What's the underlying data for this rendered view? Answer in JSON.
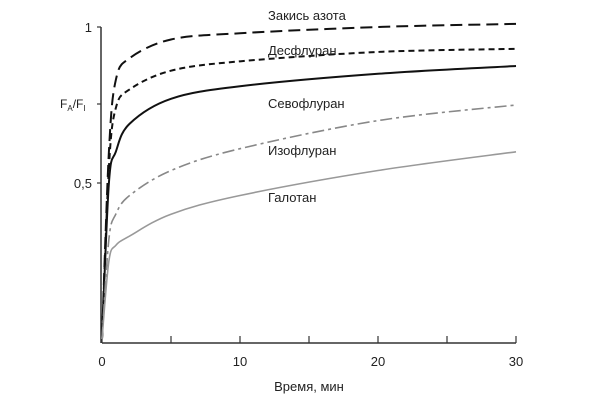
{
  "chart_data": {
    "type": "line",
    "title": "",
    "xlabel": "Время, мин",
    "ylabel_main": "F",
    "ylabel_sub_a": "A",
    "ylabel_sub_i": "I",
    "ylabel": "FA/FI",
    "xlim": [
      0,
      30
    ],
    "ylim": [
      0,
      1
    ],
    "xticks": [
      0,
      5,
      10,
      15,
      20,
      25,
      30
    ],
    "xtick_labels": [
      "0",
      "10",
      "20",
      "30"
    ],
    "xtick_label_values": [
      0,
      10,
      20,
      30
    ],
    "ytick_labels": [
      "1",
      "0,5"
    ],
    "ytick_label_values": [
      1,
      0.5
    ],
    "grid": false,
    "legend": "inline labels",
    "x": [
      0,
      0.5,
      1,
      2,
      5,
      10,
      20,
      30
    ],
    "series": [
      {
        "name": "Закись азота",
        "style": "long-dash",
        "color": "#111111",
        "values": [
          0,
          0.6,
          0.83,
          0.9,
          0.96,
          0.98,
          1.0,
          1.01
        ]
      },
      {
        "name": "Десфлуран",
        "style": "short-dash",
        "color": "#111111",
        "values": [
          0,
          0.55,
          0.74,
          0.8,
          0.86,
          0.89,
          0.92,
          0.93
        ]
      },
      {
        "name": "Севофлуран",
        "style": "solid",
        "color": "#111111",
        "values": [
          0,
          0.5,
          0.6,
          0.69,
          0.77,
          0.81,
          0.85,
          0.875
        ]
      },
      {
        "name": "Изофлуран",
        "style": "dash-dot",
        "color": "#888888",
        "values": [
          0,
          0.32,
          0.4,
          0.46,
          0.54,
          0.61,
          0.7,
          0.75
        ]
      },
      {
        "name": "Галотан",
        "style": "solid",
        "color": "#999999",
        "values": [
          0,
          0.25,
          0.3,
          0.33,
          0.4,
          0.46,
          0.54,
          0.6
        ]
      }
    ]
  }
}
